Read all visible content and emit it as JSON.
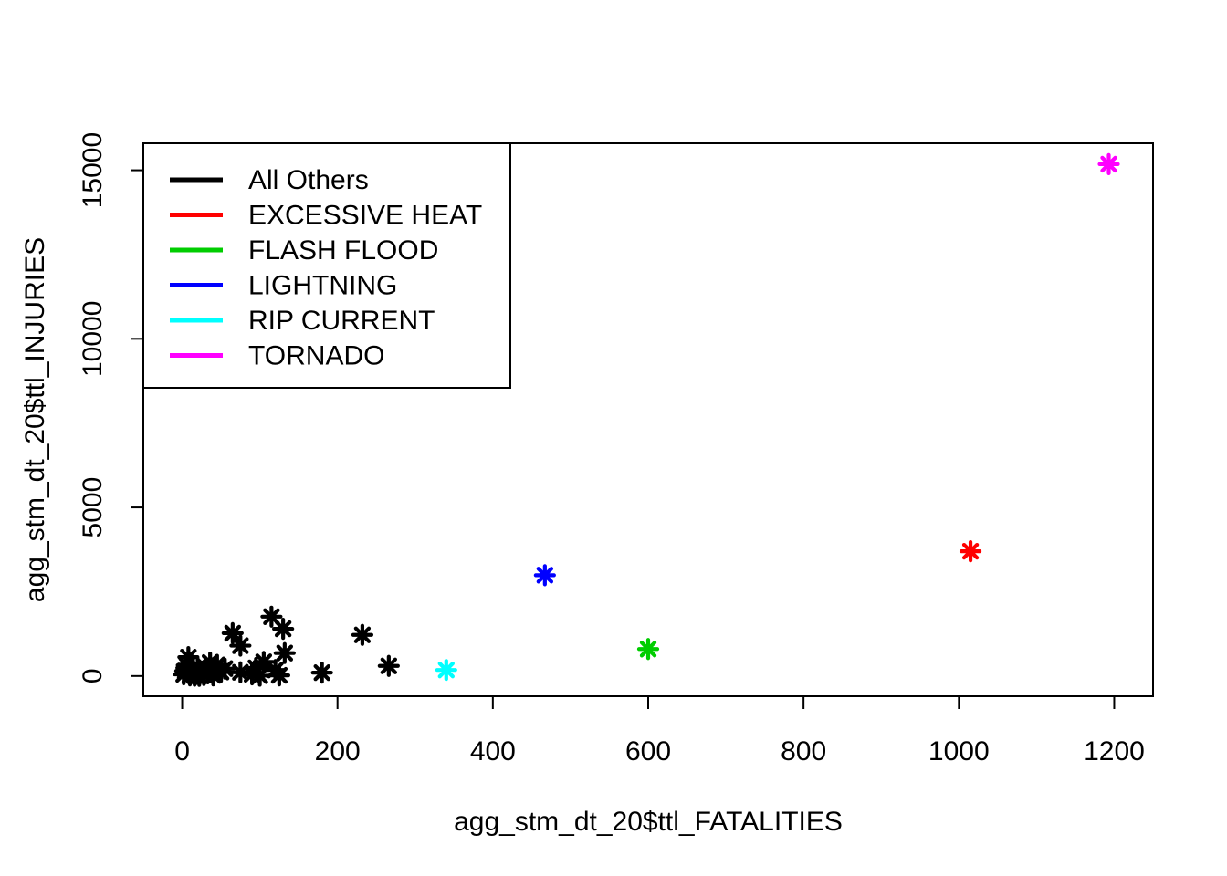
{
  "chart_data": {
    "type": "scatter",
    "xlabel": "agg_stm_dt_20$ttl_FATALITIES",
    "ylabel": "agg_stm_dt_20$ttl_INJURIES",
    "xlim": [
      -50,
      1250
    ],
    "ylim": [
      -600,
      15800
    ],
    "x_ticks": [
      0,
      200,
      400,
      600,
      800,
      1000,
      1200
    ],
    "y_ticks": [
      0,
      5000,
      10000,
      15000
    ],
    "grid": false,
    "legend_position": "top-left",
    "marker": "asterisk",
    "legend": [
      {
        "name": "All Others",
        "color": "#000000"
      },
      {
        "name": "EXCESSIVE HEAT",
        "color": "#ff0000"
      },
      {
        "name": "FLASH FLOOD",
        "color": "#00cd00"
      },
      {
        "name": "LIGHTNING",
        "color": "#0000ff"
      },
      {
        "name": "RIP CURRENT",
        "color": "#00ffff"
      },
      {
        "name": "TORNADO",
        "color": "#ff00ff"
      }
    ],
    "series": [
      {
        "name": "All Others",
        "color": "#000000",
        "points": [
          [
            2,
            50
          ],
          [
            4,
            150
          ],
          [
            6,
            320
          ],
          [
            8,
            560
          ],
          [
            10,
            20
          ],
          [
            12,
            90
          ],
          [
            14,
            200
          ],
          [
            16,
            10
          ],
          [
            18,
            60
          ],
          [
            20,
            240
          ],
          [
            22,
            5
          ],
          [
            25,
            120
          ],
          [
            28,
            30
          ],
          [
            30,
            260
          ],
          [
            33,
            80
          ],
          [
            36,
            400
          ],
          [
            38,
            150
          ],
          [
            40,
            20
          ],
          [
            45,
            330
          ],
          [
            50,
            120
          ],
          [
            55,
            220
          ],
          [
            65,
            1270
          ],
          [
            75,
            900
          ],
          [
            75,
            110
          ],
          [
            90,
            50
          ],
          [
            95,
            240
          ],
          [
            100,
            10
          ],
          [
            105,
            420
          ],
          [
            115,
            1760
          ],
          [
            120,
            180
          ],
          [
            125,
            20
          ],
          [
            130,
            1400
          ],
          [
            132,
            680
          ],
          [
            180,
            100
          ],
          [
            232,
            1220
          ],
          [
            266,
            300
          ]
        ]
      },
      {
        "name": "EXCESSIVE HEAT",
        "color": "#ff0000",
        "points": [
          [
            1015,
            3700
          ]
        ]
      },
      {
        "name": "FLASH FLOOD",
        "color": "#00cd00",
        "points": [
          [
            600,
            800
          ]
        ]
      },
      {
        "name": "LIGHTNING",
        "color": "#0000ff",
        "points": [
          [
            467,
            2990
          ]
        ]
      },
      {
        "name": "RIP CURRENT",
        "color": "#00ffff",
        "points": [
          [
            340,
            180
          ]
        ]
      },
      {
        "name": "TORNADO",
        "color": "#ff00ff",
        "points": [
          [
            1193,
            15180
          ]
        ]
      }
    ]
  }
}
